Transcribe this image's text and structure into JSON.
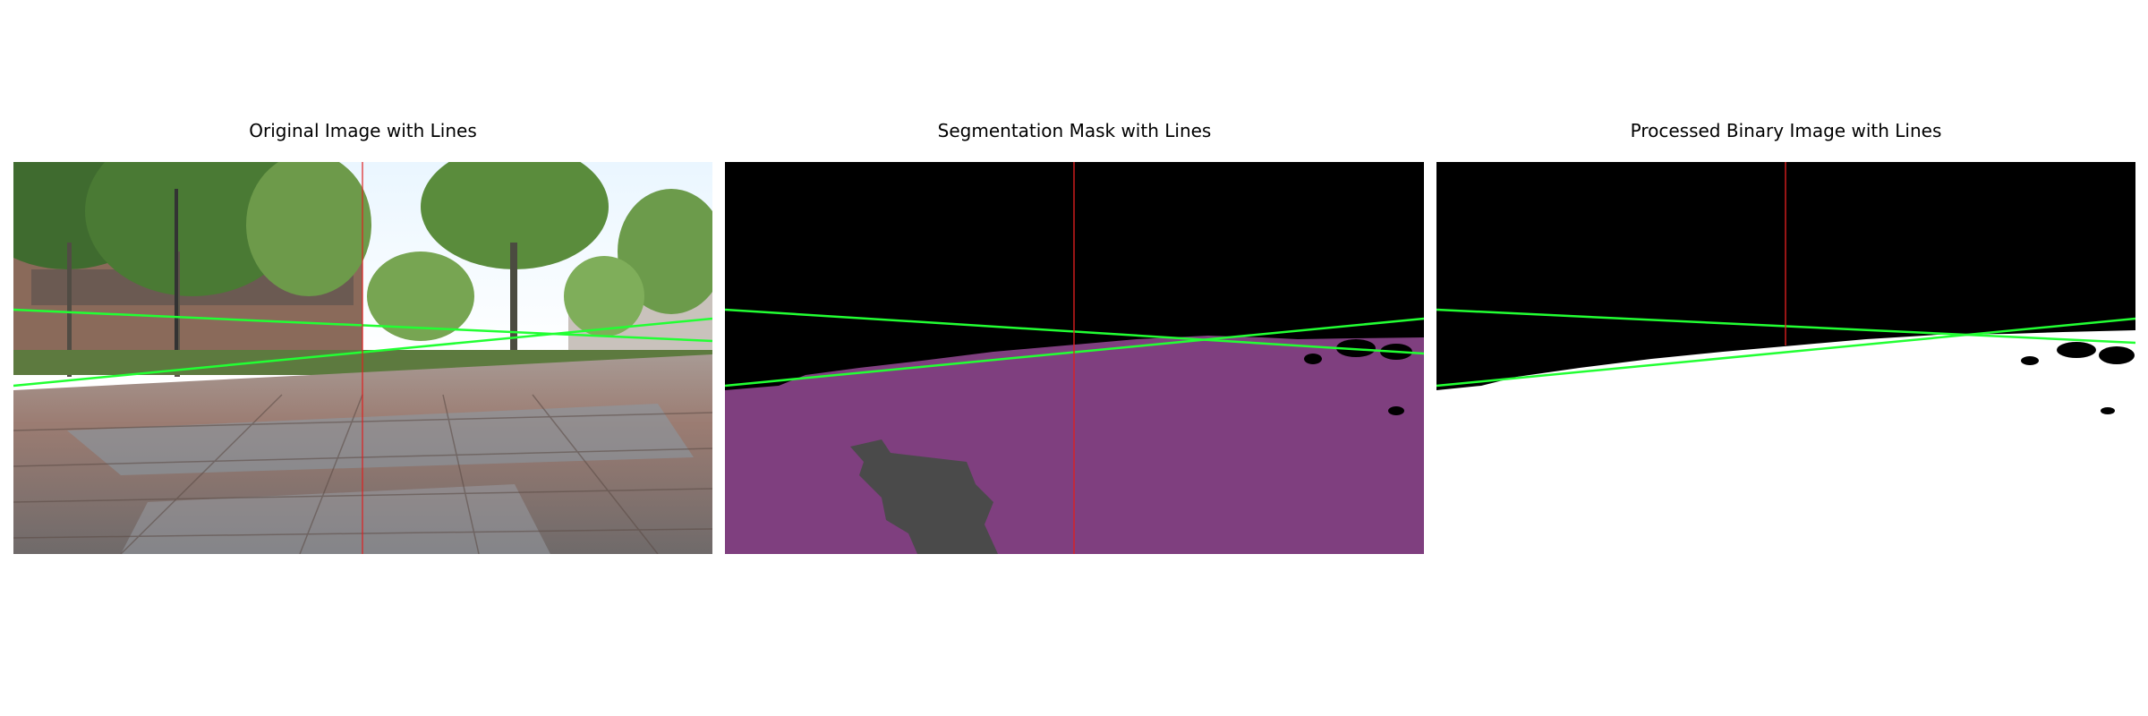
{
  "panels": [
    {
      "title": "Original Image with Lines"
    },
    {
      "title": "Segmentation Mask with Lines"
    },
    {
      "title": "Processed Binary Image with Lines"
    }
  ],
  "colors": {
    "guide_line_green": "#22ff33",
    "center_line_red": "#e02020",
    "mask_drivable": "#7f3f7f",
    "mask_obstacle": "#4a4a4a",
    "mask_background": "#000000",
    "binary_drivable": "#ffffff",
    "binary_background": "#000000"
  }
}
